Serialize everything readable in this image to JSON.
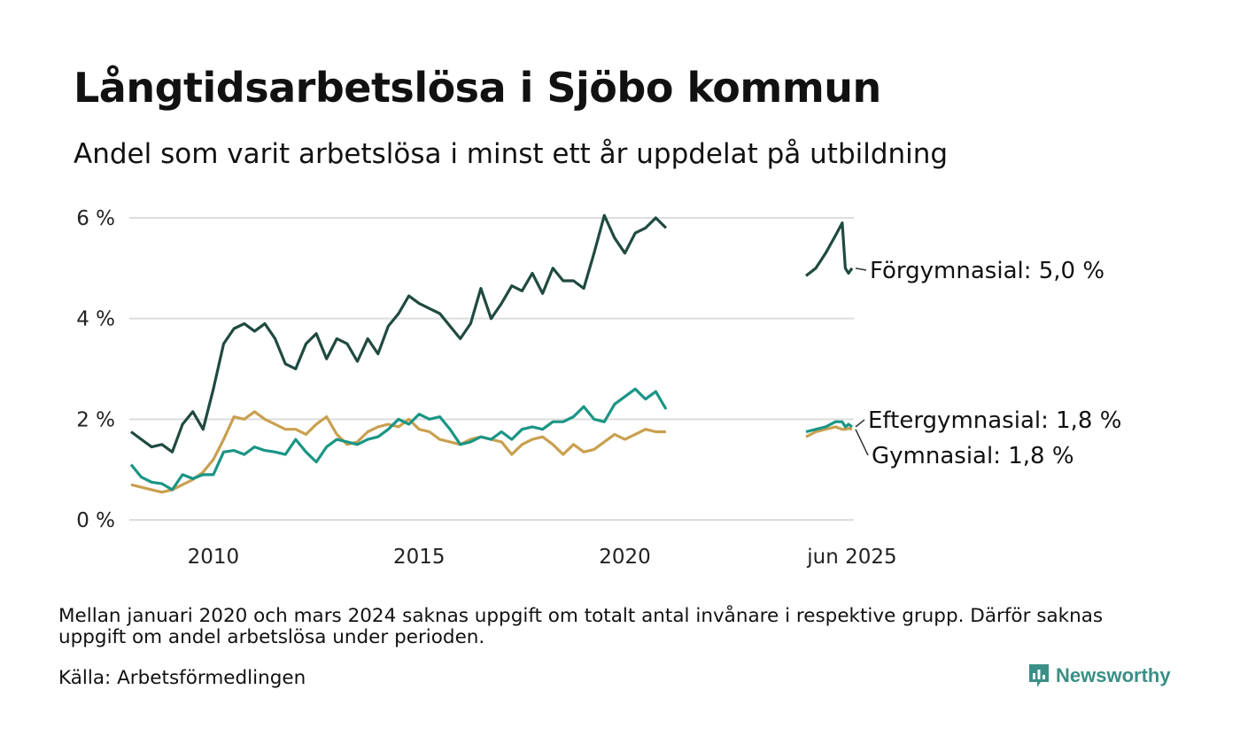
{
  "header": {
    "title": "Långtidsarbetslösa i Sjöbo kommun",
    "subtitle": "Andel som varit arbetslösa i minst ett år uppdelat på utbildning"
  },
  "footer": {
    "note": "Mellan januari 2020 och mars 2024 saknas uppgift om totalt antal invånare i respektive grupp. Därför saknas uppgift om andel arbetslösa under perioden.",
    "source": "Källa: Arbetsförmedlingen",
    "brand": "Newsworthy",
    "brand_color": "#3a8f86"
  },
  "chart_data": {
    "type": "line",
    "title": "Långtidsarbetslösa i Sjöbo kommun",
    "subtitle": "Andel som varit arbetslösa i minst ett år uppdelat på utbildning",
    "xlabel": "",
    "ylabel": "",
    "ylim": [
      0,
      6
    ],
    "yticks": [
      {
        "value": 0,
        "label": "0 %"
      },
      {
        "value": 2,
        "label": "2 %"
      },
      {
        "value": 4,
        "label": "4 %"
      },
      {
        "value": 6,
        "label": "6 %"
      }
    ],
    "xticks": [
      {
        "value": 2010,
        "label": "2010"
      },
      {
        "value": 2015,
        "label": "2015"
      },
      {
        "value": 2020,
        "label": "2020"
      },
      {
        "value": 2025.42,
        "label": "jun 2025"
      }
    ],
    "grid": true,
    "legend": "end-labels-right",
    "series": [
      {
        "name": "Förgymnasial",
        "end_label": "Förgymnasial: 5,0 %",
        "color": "#1f4a40",
        "segments": [
          {
            "x": [
              2008.0,
              2008.25,
              2008.5,
              2008.75,
              2009.0,
              2009.25,
              2009.5,
              2009.75,
              2010.0,
              2010.25,
              2010.5,
              2010.75,
              2011.0,
              2011.25,
              2011.5,
              2011.75,
              2012.0,
              2012.25,
              2012.5,
              2012.75,
              2013.0,
              2013.25,
              2013.5,
              2013.75,
              2014.0,
              2014.25,
              2014.5,
              2014.75,
              2015.0,
              2015.25,
              2015.5,
              2015.75,
              2016.0,
              2016.25,
              2016.5,
              2016.75,
              2017.0,
              2017.25,
              2017.5,
              2017.75,
              2018.0,
              2018.25,
              2018.5,
              2018.75,
              2019.0,
              2019.25,
              2019.5,
              2019.75,
              2020.0,
              2020.25,
              2020.5,
              2020.75,
              2021.0
            ],
            "y": [
              1.75,
              1.6,
              1.45,
              1.5,
              1.35,
              1.9,
              2.15,
              1.8,
              2.6,
              3.5,
              3.8,
              3.9,
              3.75,
              3.9,
              3.6,
              3.1,
              3.0,
              3.5,
              3.7,
              3.2,
              3.6,
              3.5,
              3.15,
              3.6,
              3.3,
              3.85,
              4.1,
              4.45,
              4.3,
              4.2,
              4.1,
              3.85,
              3.6,
              3.9,
              4.6,
              4.0,
              4.3,
              4.65,
              4.55,
              4.9,
              4.5,
              5.0,
              4.75,
              4.75,
              4.6,
              5.3,
              6.05,
              5.6,
              5.3,
              5.7,
              5.8,
              6.0,
              5.8
            ]
          },
          {
            "x": [
              2024.25,
              2024.5,
              2024.75,
              2025.0,
              2025.17,
              2025.25,
              2025.33,
              2025.42
            ],
            "y": [
              4.85,
              5.0,
              5.3,
              5.65,
              5.9,
              5.0,
              4.9,
              5.0
            ]
          }
        ]
      },
      {
        "name": "Eftergymnasial",
        "end_label": "Eftergymnasial: 1,8 %",
        "color": "#1a9585",
        "segments": [
          {
            "x": [
              2008.0,
              2008.25,
              2008.5,
              2008.75,
              2009.0,
              2009.25,
              2009.5,
              2009.75,
              2010.0,
              2010.25,
              2010.5,
              2010.75,
              2011.0,
              2011.25,
              2011.5,
              2011.75,
              2012.0,
              2012.25,
              2012.5,
              2012.75,
              2013.0,
              2013.25,
              2013.5,
              2013.75,
              2014.0,
              2014.25,
              2014.5,
              2014.75,
              2015.0,
              2015.25,
              2015.5,
              2015.75,
              2016.0,
              2016.25,
              2016.5,
              2016.75,
              2017.0,
              2017.25,
              2017.5,
              2017.75,
              2018.0,
              2018.25,
              2018.5,
              2018.75,
              2019.0,
              2019.25,
              2019.5,
              2019.75,
              2020.0,
              2020.25,
              2020.5,
              2020.75,
              2021.0
            ],
            "y": [
              1.1,
              0.85,
              0.75,
              0.72,
              0.6,
              0.9,
              0.82,
              0.9,
              0.9,
              1.35,
              1.38,
              1.3,
              1.45,
              1.38,
              1.35,
              1.3,
              1.6,
              1.35,
              1.15,
              1.45,
              1.6,
              1.55,
              1.5,
              1.6,
              1.65,
              1.8,
              2.0,
              1.9,
              2.1,
              2.0,
              2.05,
              1.8,
              1.5,
              1.55,
              1.65,
              1.6,
              1.75,
              1.6,
              1.8,
              1.85,
              1.8,
              1.95,
              1.95,
              2.05,
              2.25,
              2.0,
              1.95,
              2.3,
              2.45,
              2.6,
              2.4,
              2.55,
              2.2
            ]
          },
          {
            "x": [
              2024.25,
              2024.5,
              2024.75,
              2025.0,
              2025.17,
              2025.25,
              2025.33,
              2025.42
            ],
            "y": [
              1.75,
              1.8,
              1.85,
              1.95,
              1.95,
              1.85,
              1.9,
              1.85
            ]
          }
        ]
      },
      {
        "name": "Gymnasial",
        "end_label": "Gymnasial: 1,8 %",
        "color": "#c9a050",
        "segments": [
          {
            "x": [
              2008.0,
              2008.25,
              2008.5,
              2008.75,
              2009.0,
              2009.25,
              2009.5,
              2009.75,
              2010.0,
              2010.25,
              2010.5,
              2010.75,
              2011.0,
              2011.25,
              2011.5,
              2011.75,
              2012.0,
              2012.25,
              2012.5,
              2012.75,
              2013.0,
              2013.25,
              2013.5,
              2013.75,
              2014.0,
              2014.25,
              2014.5,
              2014.75,
              2015.0,
              2015.25,
              2015.5,
              2015.75,
              2016.0,
              2016.25,
              2016.5,
              2016.75,
              2017.0,
              2017.25,
              2017.5,
              2017.75,
              2018.0,
              2018.25,
              2018.5,
              2018.75,
              2019.0,
              2019.25,
              2019.5,
              2019.75,
              2020.0,
              2020.25,
              2020.5,
              2020.75,
              2021.0
            ],
            "y": [
              0.7,
              0.65,
              0.6,
              0.55,
              0.6,
              0.7,
              0.8,
              0.95,
              1.2,
              1.6,
              2.05,
              2.0,
              2.15,
              2.0,
              1.9,
              1.8,
              1.8,
              1.7,
              1.9,
              2.05,
              1.7,
              1.5,
              1.55,
              1.75,
              1.85,
              1.9,
              1.85,
              2.0,
              1.8,
              1.75,
              1.6,
              1.55,
              1.5,
              1.6,
              1.65,
              1.6,
              1.55,
              1.3,
              1.5,
              1.6,
              1.65,
              1.5,
              1.3,
              1.5,
              1.35,
              1.4,
              1.55,
              1.7,
              1.6,
              1.7,
              1.8,
              1.75,
              1.75
            ]
          },
          {
            "x": [
              2024.25,
              2024.5,
              2024.75,
              2025.0,
              2025.17,
              2025.25,
              2025.33,
              2025.42
            ],
            "y": [
              1.65,
              1.75,
              1.8,
              1.85,
              1.8,
              1.8,
              1.82,
              1.8
            ]
          }
        ]
      }
    ]
  }
}
